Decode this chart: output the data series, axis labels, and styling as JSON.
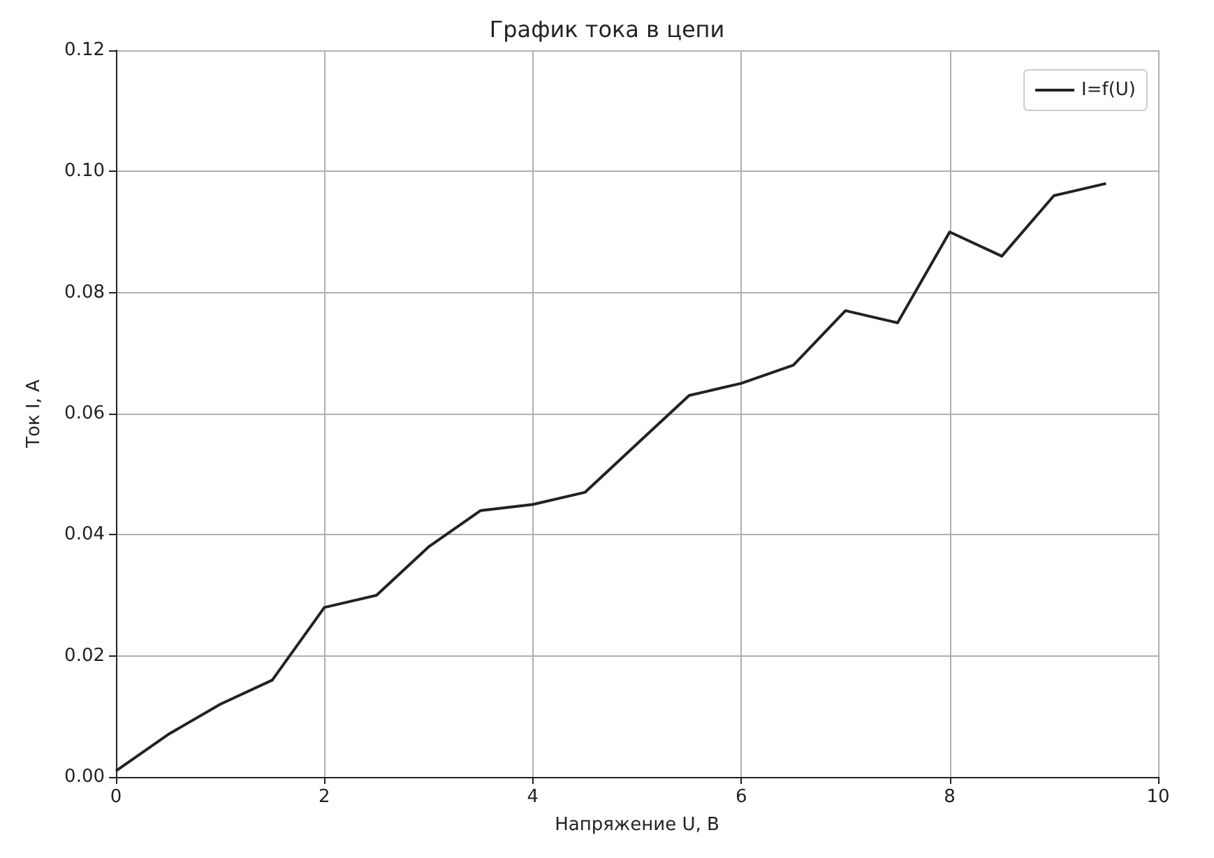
{
  "chart_data": {
    "type": "line",
    "title": "График тока в цепи",
    "xlabel": "Напряжение U, В",
    "ylabel": "Ток I, А",
    "x": [
      0,
      0.5,
      1,
      1.5,
      2,
      2.5,
      3,
      3.5,
      4,
      4.5,
      5,
      5.5,
      6,
      6.5,
      7,
      7.5,
      8,
      8.5,
      9,
      9.5
    ],
    "series": [
      {
        "name": "I=f(U)",
        "color": "#222222",
        "values": [
          0.001,
          0.007,
          0.012,
          0.016,
          0.028,
          0.03,
          0.038,
          0.044,
          0.045,
          0.047,
          0.055,
          0.063,
          0.065,
          0.068,
          0.077,
          0.075,
          0.09,
          0.086,
          0.096,
          0.098
        ]
      }
    ],
    "xlim": [
      0,
      10
    ],
    "xticks": [
      0,
      2,
      4,
      6,
      8,
      10
    ],
    "ylim": [
      0,
      0.12
    ],
    "yticks": [
      {
        "value": 0,
        "label": "0.00"
      },
      {
        "value": 0.02,
        "label": "0.02"
      },
      {
        "value": 0.04,
        "label": "0.04"
      },
      {
        "value": 0.06,
        "label": "0.06"
      },
      {
        "value": 0.08,
        "label": "0.08"
      },
      {
        "value": 0.1,
        "label": "0.10"
      },
      {
        "value": 0.12,
        "label": "0.12"
      }
    ],
    "grid": true,
    "legend": "top right",
    "marker": "none",
    "line_style": "solid"
  }
}
